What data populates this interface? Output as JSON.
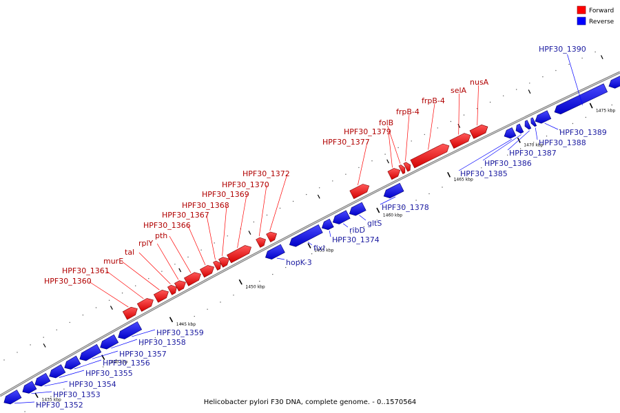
{
  "caption": "Helicobacter pylori F30 DNA, complete genome. - 0..1570564",
  "legend": [
    {
      "label": "Forward",
      "color": "#ff0000"
    },
    {
      "label": "Reverse",
      "color": "#0000ff"
    }
  ],
  "colors": {
    "forward": "#ff0000",
    "reverse": "#0000ff",
    "forward_text": "#b00000",
    "reverse_text": "#1a1aa0",
    "backbone": "#888888"
  },
  "ticks": [
    "1435 kbp",
    "1440 kbp",
    "1445 kbp",
    "1450 kbp",
    "1455 kbp",
    "1460 kbp",
    "1465 kbp",
    "1470 kbp",
    "1475 kbp"
  ],
  "forward_genes": [
    "HPF30_1360",
    "HPF30_1361",
    "murE",
    "tal",
    "rplY",
    "pth",
    "HPF30_1366",
    "HPF30_1367",
    "HPF30_1368",
    "HPF30_1369",
    "HPF30_1370",
    "HPF30_1372",
    "HPF30_1377",
    "HPF30_1379",
    "folB",
    "frpB-4",
    "frpB-4",
    "selA",
    "nusA"
  ],
  "reverse_genes": [
    "HPF30_1352",
    "HPF30_1353",
    "HPF30_1354",
    "HPF30_1355",
    "HPF30_1356",
    "HPF30_1357",
    "HPF30_1358",
    "HPF30_1359",
    "hopK-3",
    "fixI",
    "HPF30_1374",
    "ribD",
    "gltS",
    "HPF30_1378",
    "HPF30_1385",
    "HPF30_1386",
    "HPF30_1387",
    "HPF30_1388",
    "HPF30_1389",
    "HPF30_1390"
  ]
}
